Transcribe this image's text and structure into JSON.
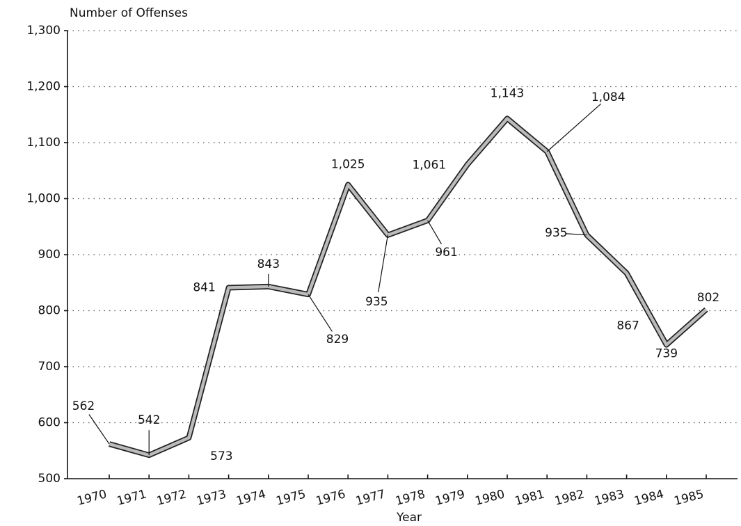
{
  "chart_data": {
    "type": "line",
    "y_axis_label": "Number of Offenses",
    "x_axis_label": "Year",
    "categories": [
      "1970",
      "1971",
      "1972",
      "1973",
      "1974",
      "1975",
      "1976",
      "1977",
      "1978",
      "1979",
      "1980",
      "1981",
      "1982",
      "1983",
      "1984",
      "1985"
    ],
    "series": [
      {
        "name": "Number of Offenses",
        "color": "#bbbbbb",
        "values": [
          562,
          542,
          573,
          841,
          843,
          829,
          1025,
          935,
          961,
          1061,
          1143,
          1084,
          935,
          867,
          739,
          802
        ],
        "value_labels": [
          "562",
          "542",
          "573",
          "841",
          "843",
          "829",
          "1,025",
          "935",
          "961",
          "1,061",
          "1,143",
          "1,084",
          "935",
          "867",
          "739",
          "802"
        ]
      }
    ],
    "ylim": [
      500,
      1300
    ],
    "yticks": [
      500,
      600,
      700,
      800,
      900,
      {
        "value": 1000,
        "label": "1,000"
      },
      {
        "value": 1100,
        "label": "1,100"
      },
      {
        "value": 1200,
        "label": "1,200"
      },
      {
        "value": 1300,
        "label": "1,300"
      }
    ],
    "grid": true
  }
}
